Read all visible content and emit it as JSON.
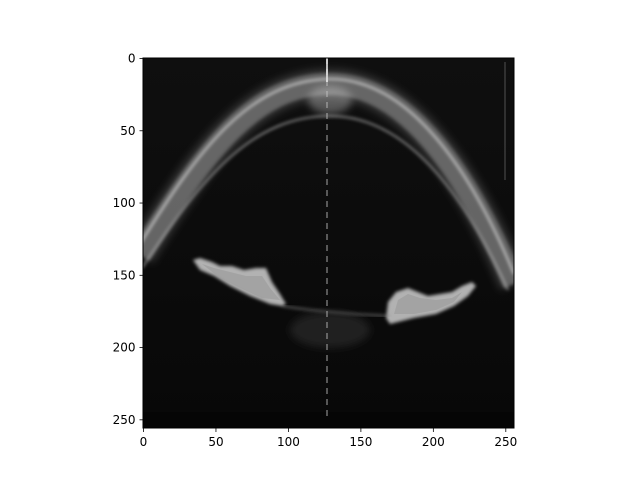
{
  "image": {
    "description_kind": "grayscale OCT scan of anterior eye segment",
    "x_range": [
      0,
      256
    ],
    "y_range": [
      0,
      256
    ],
    "y_inverted": true,
    "colors": {
      "background": "#0b0b0b",
      "frame": "#000000",
      "tissue": "#cfcfcf"
    }
  },
  "axes": {
    "x_ticks": [
      {
        "value": 0,
        "label": "0"
      },
      {
        "value": 50,
        "label": "50"
      },
      {
        "value": 100,
        "label": "100"
      },
      {
        "value": 150,
        "label": "150"
      },
      {
        "value": 200,
        "label": "200"
      },
      {
        "value": 250,
        "label": "250"
      }
    ],
    "y_ticks": [
      {
        "value": 0,
        "label": "0"
      },
      {
        "value": 50,
        "label": "50"
      },
      {
        "value": 100,
        "label": "100"
      },
      {
        "value": 150,
        "label": "150"
      },
      {
        "value": 200,
        "label": "200"
      },
      {
        "value": 250,
        "label": "250"
      }
    ]
  }
}
